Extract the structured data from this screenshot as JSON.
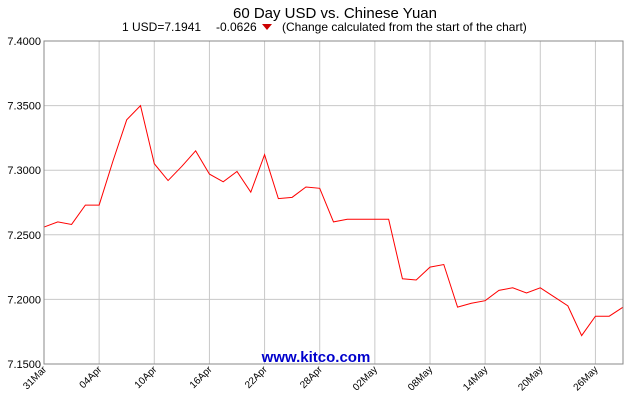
{
  "chart_data": {
    "type": "line",
    "title": "60 Day USD vs. Chinese Yuan",
    "subtitle": {
      "rate": "1 USD=7.1941",
      "change": "-0.0626",
      "note": "(Change calculated from the start of the chart)"
    },
    "watermark": "www.kitco.com",
    "categories": [
      "31Mar",
      null,
      null,
      null,
      "04Apr",
      null,
      null,
      null,
      "10Apr",
      null,
      null,
      null,
      "16Apr",
      null,
      null,
      null,
      "22Apr",
      null,
      null,
      null,
      "28Apr",
      null,
      null,
      null,
      "02May",
      null,
      null,
      null,
      "08May",
      null,
      null,
      null,
      "14May",
      null,
      null,
      null,
      "20May",
      null,
      null,
      null,
      "26May",
      null,
      null
    ],
    "series": [
      {
        "name": "USD/CNY",
        "color": "#ff0000",
        "values": [
          7.256,
          7.26,
          7.258,
          7.273,
          7.273,
          7.307,
          7.339,
          7.35,
          7.305,
          7.292,
          7.303,
          7.315,
          7.297,
          7.291,
          7.299,
          7.283,
          7.312,
          7.278,
          7.279,
          7.287,
          7.286,
          7.26,
          7.262,
          7.262,
          7.262,
          7.262,
          7.216,
          7.215,
          7.225,
          7.227,
          7.194,
          7.197,
          7.199,
          7.207,
          7.209,
          7.205,
          7.209,
          7.202,
          7.195,
          7.172,
          7.187,
          7.187,
          7.194
        ]
      }
    ],
    "ylim": [
      7.15,
      7.4
    ],
    "yticks": [
      {
        "value": 7.15,
        "label": "7.1500"
      },
      {
        "value": 7.2,
        "label": "7.2000"
      },
      {
        "value": 7.25,
        "label": "7.2500"
      },
      {
        "value": 7.3,
        "label": "7.3000"
      },
      {
        "value": 7.35,
        "label": "7.3500"
      },
      {
        "value": 7.4,
        "label": "7.4000"
      }
    ],
    "grid": true,
    "change_color": "#cc0000"
  }
}
